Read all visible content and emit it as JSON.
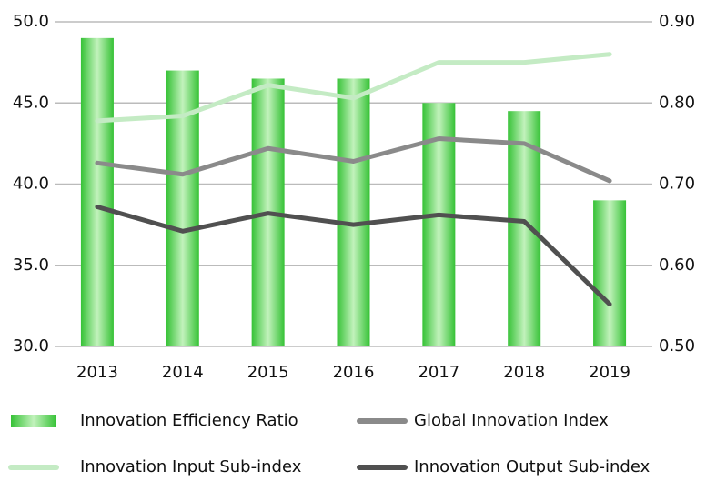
{
  "chart_data": {
    "type": "bar",
    "categories": [
      "2013",
      "2014",
      "2015",
      "2016",
      "2017",
      "2018",
      "2019"
    ],
    "series": [
      {
        "name": "Innovation Efficiency Ratio",
        "type": "bar",
        "axis": "y2",
        "color": "#3cc83c",
        "values": [
          0.88,
          0.84,
          0.83,
          0.83,
          0.8,
          0.79,
          0.68
        ]
      },
      {
        "name": "Global Innovation Index",
        "type": "line",
        "color": "#8a8a8a",
        "values": [
          41.3,
          40.6,
          42.2,
          41.4,
          42.8,
          42.5,
          40.2
        ]
      },
      {
        "name": "Innovation Input Sub-index",
        "type": "line",
        "color": "#c4ebc4",
        "values": [
          43.9,
          44.2,
          46.1,
          45.3,
          47.5,
          47.5,
          48.0
        ]
      },
      {
        "name": "Innovation Output Sub-index",
        "type": "line",
        "color": "#505050",
        "values": [
          38.6,
          37.1,
          38.2,
          37.5,
          38.1,
          37.7,
          32.6
        ]
      }
    ],
    "ylim": [
      30,
      50
    ],
    "yticks": [
      {
        "value": 30,
        "label": "30.0"
      },
      {
        "value": 35,
        "label": "35.0"
      },
      {
        "value": 40,
        "label": "40.0"
      },
      {
        "value": 45,
        "label": "45.0"
      },
      {
        "value": 50,
        "label": "50.0"
      }
    ],
    "y2lim": [
      0.5,
      0.9
    ],
    "y2ticks": [
      {
        "value": 0.5,
        "label": "0.50"
      },
      {
        "value": 0.6,
        "label": "0.60"
      },
      {
        "value": 0.7,
        "label": "0.70"
      },
      {
        "value": 0.8,
        "label": "0.80"
      },
      {
        "value": 0.9,
        "label": "0.90"
      }
    ],
    "grid": true
  }
}
